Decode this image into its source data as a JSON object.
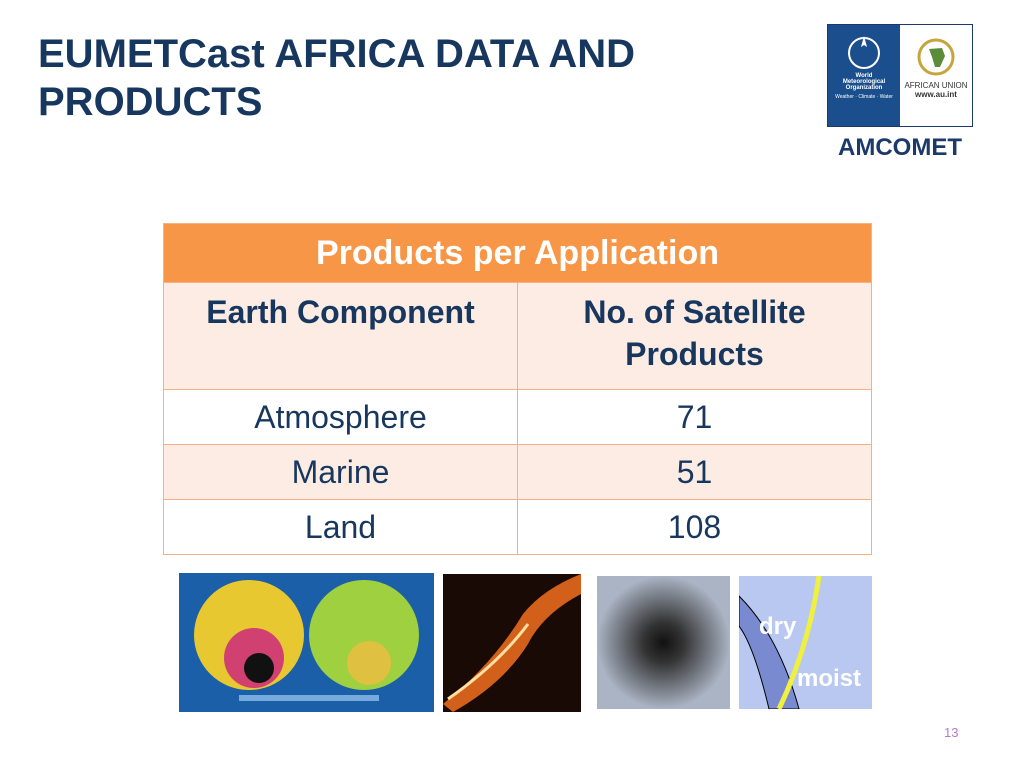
{
  "header": {
    "title": "EUMETCast AFRICA DATA AND PRODUCTS"
  },
  "logo": {
    "wmo_name": "World Meteorological Organization",
    "wmo_motto": "Weather · Climate · Water",
    "au_name": "AFRICAN UNION",
    "au_url": "www.au.int",
    "brand": "AMCOMET"
  },
  "table": {
    "caption": "Products per Application",
    "columns": [
      "Earth Component",
      "No. of Satellite Products"
    ],
    "rows": [
      [
        "Atmosphere",
        "71"
      ],
      [
        "Marine",
        "51"
      ],
      [
        "Land",
        "108"
      ]
    ]
  },
  "images": {
    "labels": [
      "dry",
      "moist"
    ]
  },
  "footer": {
    "page": "13"
  }
}
